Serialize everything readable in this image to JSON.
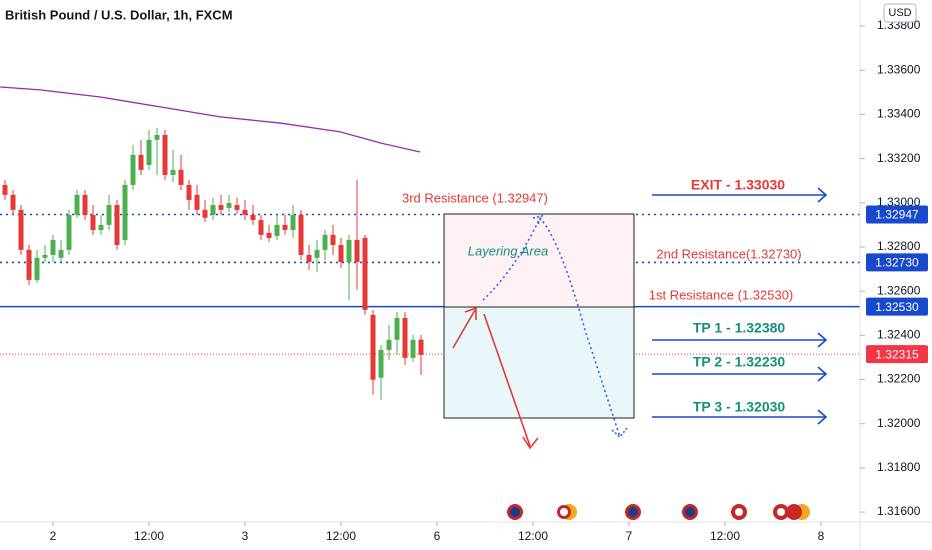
{
  "chart_data": {
    "type": "candlestick",
    "title": "British Pound / U.S. Dollar, 1h, FXCM",
    "currency": "USD",
    "up_color": "#4caf50",
    "down_color": "#e53935",
    "open": [
      1.33081,
      1.33036,
      1.32968,
      1.32787,
      1.32651,
      1.32751,
      1.32764,
      1.32751,
      1.32787,
      1.32945,
      1.33036,
      1.32945,
      1.32877,
      1.329,
      1.3299,
      1.32832,
      1.33081,
      1.33217,
      1.33171,
      1.33285,
      1.33307,
      1.33126,
      1.33149,
      1.33081,
      1.33036,
      1.32968,
      1.32945,
      1.3299,
      1.32977,
      1.3299,
      1.32968,
      1.32945,
      1.32922,
      1.32864,
      1.3285,
      1.329,
      1.32877,
      1.32945,
      1.32764,
      1.32751,
      1.32787,
      1.32855,
      1.32809,
      1.32732,
      1.32832,
      1.32841,
      1.32493,
      1.32208,
      1.32334,
      1.3238,
      1.32479,
      1.32298,
      1.3238
    ],
    "high": [
      1.33104,
      1.33058,
      1.3299,
      1.32809,
      1.32787,
      1.32809,
      1.32855,
      1.32832,
      1.32968,
      1.33058,
      1.33058,
      1.3299,
      1.32945,
      1.33036,
      1.33013,
      1.33104,
      1.33262,
      1.33285,
      1.3333,
      1.33339,
      1.3333,
      1.33239,
      1.33217,
      1.33104,
      1.33081,
      1.33013,
      1.33022,
      1.33036,
      1.33036,
      1.33022,
      1.33013,
      1.3299,
      1.32945,
      1.329,
      1.32945,
      1.32945,
      1.3299,
      1.32968,
      1.32809,
      1.32832,
      1.32877,
      1.329,
      1.32841,
      1.32855,
      1.33104,
      1.32855,
      1.32515,
      1.32357,
      1.32447,
      1.32506,
      1.32506,
      1.32402,
      1.32402
    ],
    "low": [
      1.33013,
      1.32945,
      1.32764,
      1.32628,
      1.32637,
      1.32732,
      1.32732,
      1.32732,
      1.32764,
      1.32932,
      1.32922,
      1.32855,
      1.32855,
      1.32877,
      1.32787,
      1.32809,
      1.33058,
      1.33126,
      1.33149,
      1.33126,
      1.33104,
      1.33094,
      1.33058,
      1.32968,
      1.32945,
      1.32913,
      1.32922,
      1.32945,
      1.32959,
      1.3295,
      1.32922,
      1.329,
      1.32832,
      1.32823,
      1.32832,
      1.32855,
      1.32841,
      1.32741,
      1.32696,
      1.32687,
      1.32741,
      1.32764,
      1.32705,
      1.3256,
      1.32606,
      1.32493,
      1.32131,
      1.32108,
      1.32289,
      1.32312,
      1.32266,
      1.3228,
      1.32221
    ],
    "close": [
      1.33036,
      1.32968,
      1.32787,
      1.32651,
      1.32751,
      1.32764,
      1.32832,
      1.32787,
      1.32945,
      1.33036,
      1.32945,
      1.32877,
      1.329,
      1.3299,
      1.32809,
      1.33081,
      1.33217,
      1.33149,
      1.33285,
      1.33307,
      1.33126,
      1.33149,
      1.33081,
      1.33013,
      1.32968,
      1.32932,
      1.3299,
      1.32968,
      1.32999,
      1.32968,
      1.32945,
      1.32922,
      1.32855,
      1.32841,
      1.329,
      1.32877,
      1.32945,
      1.32764,
      1.32732,
      1.32787,
      1.32855,
      1.32809,
      1.32732,
      1.32832,
      1.32732,
      1.32515,
      1.32199,
      1.32334,
      1.3238,
      1.32479,
      1.32298,
      1.3238,
      1.32312
    ],
    "moving_average": {
      "color": "#9c27b0",
      "x": [
        -0.6,
        4.4,
        11.9,
        19.4,
        26.9,
        34.4,
        41.9,
        46.9,
        51.9
      ],
      "values": [
        1.33524,
        1.33511,
        1.33479,
        1.33434,
        1.33389,
        1.33361,
        1.33321,
        1.33271,
        1.3323
      ]
    },
    "xlim": [
      -0.625,
      106.875
    ],
    "xticks": [
      {
        "value": 6,
        "label": "2"
      },
      {
        "value": 18,
        "label": "12:00"
      },
      {
        "value": 30,
        "label": "3"
      },
      {
        "value": 42,
        "label": "12:00"
      },
      {
        "value": 54,
        "label": "6"
      },
      {
        "value": 66,
        "label": "12:00"
      },
      {
        "value": 78,
        "label": "7"
      },
      {
        "value": 90,
        "label": "12:00"
      },
      {
        "value": 102,
        "label": "8"
      }
    ],
    "ylim": [
      1.31555,
      1.33918
    ],
    "yticks": [
      {
        "value": 1.338,
        "label": "1.33800"
      },
      {
        "value": 1.336,
        "label": "1.33600"
      },
      {
        "value": 1.334,
        "label": "1.33400"
      },
      {
        "value": 1.332,
        "label": "1.33200"
      },
      {
        "value": 1.33,
        "label": "1.33000"
      },
      {
        "value": 1.328,
        "label": "1.32800"
      },
      {
        "value": 1.326,
        "label": "1.32600"
      },
      {
        "value": 1.324,
        "label": "1.32400"
      },
      {
        "value": 1.322,
        "label": "1.32200"
      },
      {
        "value": 1.32,
        "label": "1.32000"
      },
      {
        "value": 1.318,
        "label": "1.31800"
      },
      {
        "value": 1.316,
        "label": "1.31600"
      }
    ],
    "levels": [
      {
        "value": 1.32947,
        "label": "1.32947",
        "color": "#1848cc",
        "style": "dotted"
      },
      {
        "value": 1.3273,
        "label": "1.32730",
        "color": "#1848cc",
        "style": "dotted"
      },
      {
        "value": 1.3253,
        "label": "1.32530",
        "color": "#1848cc",
        "style": "solid"
      },
      {
        "value": 1.32315,
        "label": "1.32315",
        "color": "#f23645",
        "style": "dotted"
      }
    ],
    "annotations": [
      "3rd Resistance (1.32947)",
      "2nd Resistance(1.32730)",
      "1st Resistance (1.32530)",
      "Layering Area"
    ],
    "targets": [
      "EXIT - 1.33030",
      "TP 1 - 1.32380",
      "TP 2 - 1.32230",
      "TP 3 - 1.32030"
    ]
  }
}
